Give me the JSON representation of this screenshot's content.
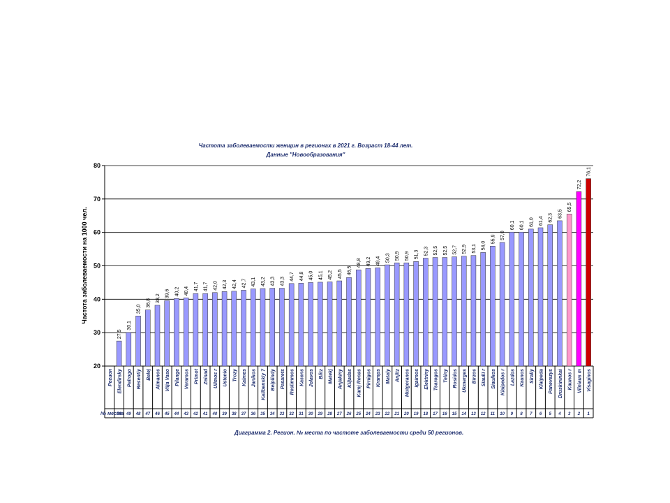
{
  "chart_data": {
    "type": "bar",
    "title": "Частота заболеваемости женщин в регионах в 2021 г. Возраст 18-44 лет.",
    "subtitle": "Данные \"Новообразования\"",
    "y_label": "Частота заболеваемости на 1000 чел.",
    "caption": "Диаграмма 2. Регион. № места по частоте заболеваемости среди 50 регионов.",
    "row_header_region": "Регион",
    "row_header_rank": "№ места",
    "categories": [
      "Elendirsky",
      "Pelrogo",
      "Resentiy",
      "Belej",
      "Almanos",
      "Vilja Vaso",
      "Pilange",
      "Veramos",
      "Primot",
      "Zeinad",
      "Ulimos r",
      "Ustenlo",
      "Trozy",
      "Kalmes",
      "Janikos",
      "Kalibenskiy 7",
      "Belplindy",
      "Pasarets",
      "Reslimmos",
      "Kasens",
      "Jolavos",
      "Blitz",
      "Matekj",
      "Anjakiny",
      "Kiljadas",
      "Kamj Ronas",
      "Pirnigos",
      "Kramps",
      "Mataly",
      "Anjitz",
      "Mutgoranos",
      "Igaimos",
      "Elektriny",
      "Tsarogos",
      "Teliny",
      "Rosidos",
      "Ukmerges",
      "Birzos",
      "Siaulii r",
      "Siaulkos",
      "Klaipedos r",
      "Lazdos",
      "Kaunos",
      "Siraliy",
      "Klaipeda",
      "Panevezys",
      "Druskininkai",
      "Kaunos r",
      "Vilniaus m",
      "Visaginos"
    ],
    "ranks": [
      50,
      49,
      48,
      47,
      46,
      45,
      44,
      43,
      42,
      41,
      40,
      39,
      38,
      37,
      36,
      35,
      34,
      33,
      32,
      31,
      30,
      29,
      28,
      27,
      26,
      25,
      24,
      23,
      22,
      21,
      20,
      19,
      18,
      17,
      16,
      15,
      14,
      13,
      12,
      11,
      10,
      9,
      8,
      7,
      6,
      5,
      4,
      3,
      2,
      1
    ],
    "values": [
      27.5,
      30.1,
      35.0,
      36.8,
      38.2,
      39.6,
      40.2,
      40.4,
      41.7,
      41.7,
      42.0,
      42.3,
      42.4,
      42.7,
      43.1,
      43.2,
      43.3,
      43.3,
      44.7,
      44.8,
      45.0,
      45.1,
      45.2,
      45.5,
      46.5,
      48.8,
      49.2,
      49.4,
      50.3,
      50.9,
      50.9,
      51.3,
      52.3,
      52.5,
      52.5,
      52.7,
      52.9,
      53.1,
      54.0,
      55.9,
      57.0,
      60.1,
      60.1,
      61.0,
      61.4,
      62.3,
      63.5,
      65.5,
      72.2,
      76.1
    ],
    "value_labels": [
      "27,5",
      "30,1",
      "35,0",
      "36,8",
      "38,2",
      "39,6",
      "40,2",
      "40,4",
      "41,7",
      "41,7",
      "42,0",
      "42,3",
      "42,4",
      "42,7",
      "43,1",
      "43,2",
      "43,3",
      "43,3",
      "44,7",
      "44,8",
      "45,0",
      "45,1",
      "45,2",
      "45,5",
      "46,5",
      "48,8",
      "49,2",
      "49,4",
      "50,3",
      "50,9",
      "50,9",
      "51,3",
      "52,3",
      "52,5",
      "52,5",
      "52,7",
      "52,9",
      "53,1",
      "54,0",
      "55,9",
      "57,0",
      "60,1",
      "60,1",
      "61,0",
      "61,4",
      "62,3",
      "63,5",
      "65,5",
      "72,2",
      "76,1"
    ],
    "color": "#9999ff",
    "colors": [
      "#9999ff",
      "#9999ff",
      "#9999ff",
      "#9999ff",
      "#9999ff",
      "#9999ff",
      "#9999ff",
      "#9999ff",
      "#9999ff",
      "#9999ff",
      "#9999ff",
      "#9999ff",
      "#9999ff",
      "#9999ff",
      "#9999ff",
      "#9999ff",
      "#9999ff",
      "#9999ff",
      "#9999ff",
      "#9999ff",
      "#9999ff",
      "#9999ff",
      "#9999ff",
      "#9999ff",
      "#9999ff",
      "#9999ff",
      "#9999ff",
      "#9999ff",
      "#9999ff",
      "#9999ff",
      "#9999ff",
      "#9999ff",
      "#9999ff",
      "#9999ff",
      "#9999ff",
      "#9999ff",
      "#9999ff",
      "#9999ff",
      "#9999ff",
      "#9999ff",
      "#9999ff",
      "#9999ff",
      "#9999ff",
      "#9999ff",
      "#9999ff",
      "#9999ff",
      "#9999ff",
      "#ff99cc",
      "#ff00ff",
      "#cc0000"
    ],
    "ylim": [
      20,
      80
    ],
    "yticks": [
      20,
      30,
      40,
      50,
      60,
      70,
      80
    ],
    "grid": true
  }
}
